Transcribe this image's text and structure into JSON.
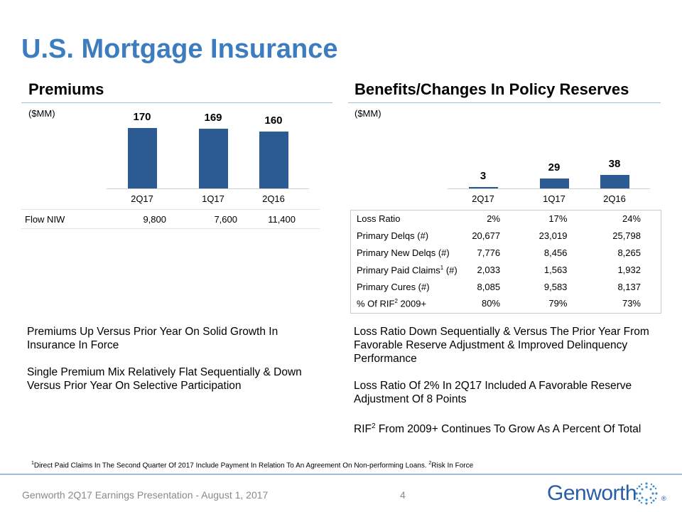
{
  "title": "U.S. Mortgage Insurance",
  "premiums": {
    "heading": "Premiums",
    "unit": "($MM)",
    "chart_data": {
      "type": "bar",
      "title": "Premiums",
      "ylabel": "($MM)",
      "categories": [
        "2Q17",
        "1Q17",
        "2Q16"
      ],
      "values": [
        170,
        169,
        160
      ],
      "ylim": [
        0,
        200
      ]
    },
    "labels": [
      "170",
      "169",
      "160"
    ],
    "flow_niw": {
      "label": "Flow NIW",
      "values": [
        "9,800",
        "7,600",
        "11,400"
      ]
    },
    "bullets": [
      "Premiums Up Versus Prior Year On Solid Growth In Insurance In Force",
      "Single Premium Mix Relatively Flat Sequentially & Down Versus Prior Year On Selective Participation"
    ]
  },
  "benefits": {
    "heading": "Benefits/Changes In Policy Reserves",
    "unit": "($MM)",
    "chart_data": {
      "type": "bar",
      "title": "Benefits/Changes In Policy Reserves",
      "ylabel": "($MM)",
      "categories": [
        "2Q17",
        "1Q17",
        "2Q16"
      ],
      "values": [
        3,
        29,
        38
      ],
      "ylim": [
        0,
        200
      ]
    },
    "labels": [
      "3",
      "29",
      "38"
    ],
    "table": {
      "rows": [
        {
          "label": "Loss Ratio",
          "sup": "",
          "suffix": "",
          "values": [
            "2%",
            "17%",
            "24%"
          ]
        },
        {
          "label": "Primary Delqs (#)",
          "sup": "",
          "suffix": "",
          "values": [
            "20,677",
            "23,019",
            "25,798"
          ]
        },
        {
          "label": "Primary New Delqs (#)",
          "sup": "",
          "suffix": "",
          "values": [
            "7,776",
            "8,456",
            "8,265"
          ]
        },
        {
          "label": "Primary Paid Claims",
          "sup": "1",
          "suffix": " (#)",
          "values": [
            "2,033",
            "1,563",
            "1,932"
          ]
        },
        {
          "label": "Primary Cures (#)",
          "sup": "",
          "suffix": "",
          "values": [
            "8,085",
            "9,583",
            "8,137"
          ]
        },
        {
          "label": "% Of RIF",
          "sup": "2",
          "suffix": " 2009+",
          "values": [
            "80%",
            "79%",
            "73%"
          ]
        }
      ]
    },
    "bullets": [
      {
        "pre": "Loss Ratio Down Sequentially & Versus The Prior Year From Favorable Reserve Adjustment & Improved Delinquency Performance",
        "sup": "",
        "post": ""
      },
      {
        "pre": "Loss Ratio Of 2% In 2Q17 Included A Favorable Reserve Adjustment Of 8 Points",
        "sup": "",
        "post": ""
      },
      {
        "pre": "RIF",
        "sup": "2",
        "post": " From 2009+ Continues To Grow As A Percent Of Total"
      }
    ]
  },
  "footnote": {
    "sup1": "1",
    "text1": "Direct Paid Claims In The Second Quarter Of 2017 Include Payment In Relation To An Agreement On Non-performing Loans. ",
    "sup2": "2",
    "text2": "Risk In Force"
  },
  "footer": {
    "text": "Genworth 2Q17 Earnings Presentation - August 1, 2017",
    "page": "4",
    "logo": "Genworth",
    "registered": "®"
  },
  "colors": {
    "title": "#3d7dbf",
    "bar": "#2c5b94",
    "rule": "#9fbcd9",
    "logo": "#2a5da8"
  }
}
